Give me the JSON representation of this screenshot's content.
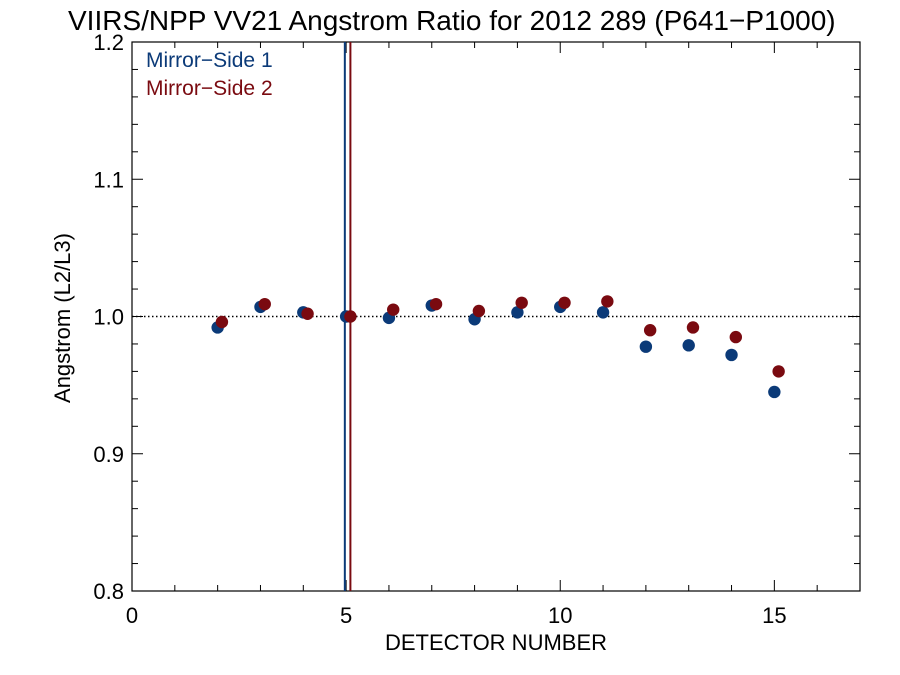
{
  "chart_data": {
    "type": "scatter",
    "title": "VIIRS/NPP VV21 Angstrom Ratio for 2012 289 (P641−P1000)",
    "xlabel": "DETECTOR NUMBER",
    "ylabel": "Angstrom (L2/L3)",
    "xlim": [
      0,
      17
    ],
    "ylim": [
      0.8,
      1.2
    ],
    "x_ticks": [
      "0",
      "5",
      "10",
      "15"
    ],
    "y_ticks": [
      "0.8",
      "0.9",
      "1.0",
      "1.1",
      "1.2"
    ],
    "reference_line_y": 1.0,
    "legend_position": "top-left",
    "series": [
      {
        "name": "Mirror−Side 1",
        "color": "#0b3a78",
        "x": [
          2,
          3,
          4,
          5,
          6,
          7,
          8,
          9,
          10,
          11,
          12,
          13,
          14,
          15
        ],
        "y": [
          0.992,
          1.007,
          1.003,
          1.0,
          0.999,
          1.008,
          0.998,
          1.003,
          1.007,
          1.003,
          0.978,
          0.979,
          0.972,
          0.945
        ]
      },
      {
        "name": "Mirror−Side 2",
        "color": "#7a0a10",
        "x": [
          2.1,
          3.1,
          4.1,
          5.1,
          6.1,
          7.1,
          8.1,
          9.1,
          10.1,
          11.1,
          12.1,
          13.1,
          14.1,
          15.1
        ],
        "y": [
          0.996,
          1.009,
          1.002,
          1.0,
          1.005,
          1.009,
          1.004,
          1.01,
          1.01,
          1.011,
          0.99,
          0.992,
          0.985,
          0.96
        ]
      }
    ],
    "vertical_lines": [
      {
        "x": 4.97,
        "color": "#0b3a78"
      },
      {
        "x": 5.1,
        "color": "#7a0a10"
      }
    ]
  }
}
